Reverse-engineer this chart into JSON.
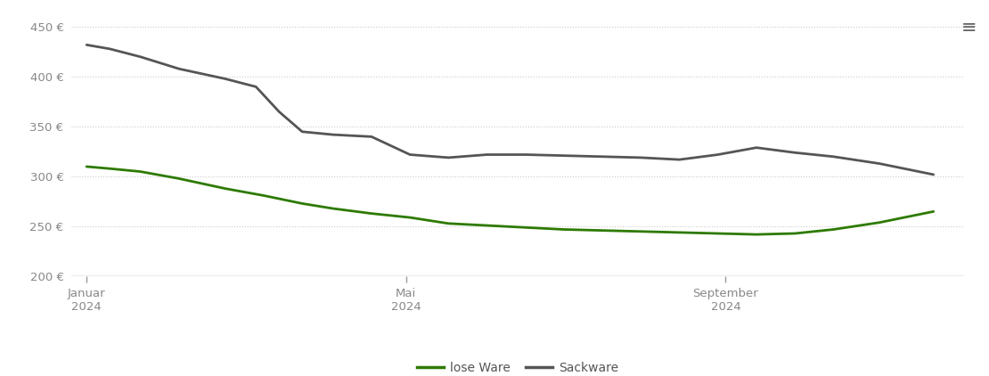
{
  "lose_ware": {
    "x": [
      0,
      0.3,
      0.7,
      1.2,
      1.8,
      2.3,
      2.8,
      3.2,
      3.7,
      4.2,
      4.7,
      5.2,
      5.7,
      6.2,
      6.7,
      7.2,
      7.7,
      8.2,
      8.7,
      9.2,
      9.7,
      10.3,
      11.0
    ],
    "y": [
      310,
      308,
      305,
      298,
      288,
      281,
      273,
      268,
      263,
      259,
      253,
      251,
      249,
      247,
      246,
      245,
      244,
      243,
      242,
      243,
      247,
      254,
      265
    ]
  },
  "sackware": {
    "x": [
      0,
      0.3,
      0.7,
      1.2,
      1.8,
      2.2,
      2.5,
      2.8,
      3.2,
      3.7,
      4.2,
      4.7,
      5.2,
      5.7,
      6.2,
      6.7,
      7.2,
      7.7,
      8.2,
      8.7,
      9.2,
      9.7,
      10.3,
      11.0
    ],
    "y": [
      432,
      428,
      420,
      408,
      398,
      390,
      365,
      345,
      342,
      340,
      322,
      319,
      322,
      322,
      321,
      320,
      319,
      317,
      322,
      329,
      324,
      320,
      313,
      302
    ]
  },
  "lose_ware_color": "#2d7a00",
  "sackware_color": "#555555",
  "background_color": "#ffffff",
  "grid_color": "#cccccc",
  "axis_line_color": "#999999",
  "tick_color": "#888888",
  "label_color": "#555555",
  "ylim": [
    200,
    460
  ],
  "yticks": [
    200,
    250,
    300,
    350,
    400,
    450
  ],
  "ytick_labels": [
    "200 €",
    "250 €",
    "300 €",
    "350 €",
    "400 €",
    "450 €"
  ],
  "xlim_min": -0.2,
  "xlim_max": 11.4,
  "xtick_positions": [
    0,
    4.15,
    8.3
  ],
  "xtick_labels": [
    "Januar\n2024",
    "Mai\n2024",
    "September\n2024"
  ],
  "legend_labels": [
    "lose Ware",
    "Sackware"
  ],
  "line_width": 2.0,
  "menu_icon_color": "#666666"
}
